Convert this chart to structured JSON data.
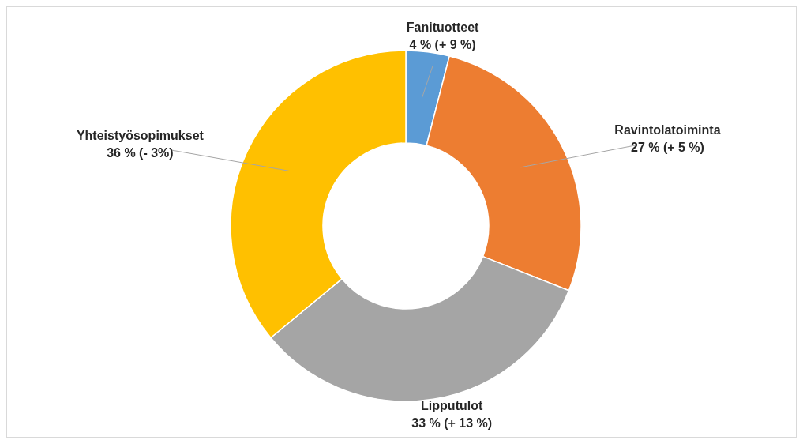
{
  "chart_data": {
    "type": "donut",
    "categories": [
      "Fanituotteet",
      "Ravintolatoiminta",
      "Lipputulot",
      "Yhteistyösopimukset"
    ],
    "values": [
      4,
      27,
      33,
      36
    ],
    "colors": [
      "#5b9bd5",
      "#ed7d31",
      "#a5a5a5",
      "#ffc000"
    ],
    "value_labels": [
      "4 % (+ 9 %)",
      "27 % (+ 5 %)",
      "33 % (+ 13 %)",
      "36 % (- 3%)"
    ],
    "legend": false
  }
}
